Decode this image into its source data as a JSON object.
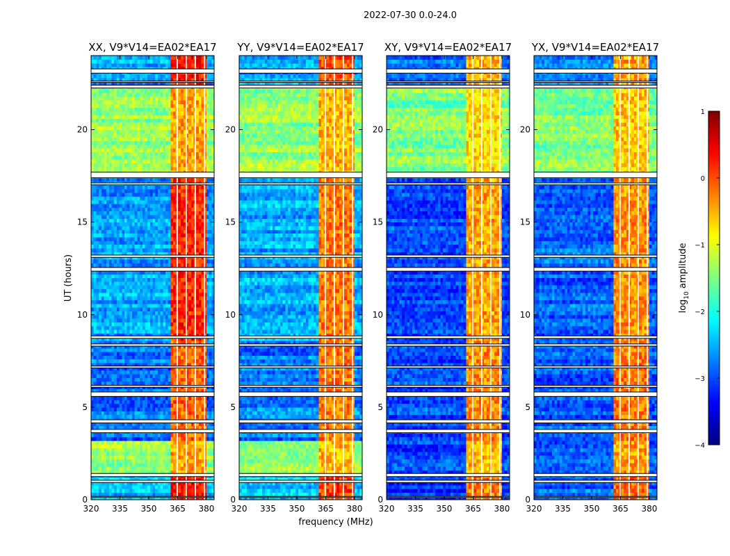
{
  "figure": {
    "suptitle": "2022-07-30 0.0-24.0",
    "xlabel": "frequency (MHz)",
    "ylabel": "UT (hours)",
    "colorbar": {
      "label_prefix": "log",
      "label_sub": "10",
      "label_suffix": " amplitude",
      "ticks": [
        1,
        0,
        -1,
        -2,
        -3,
        -4
      ],
      "tick_labels": [
        "1",
        "0",
        "−1",
        "−2",
        "−3",
        "−4"
      ],
      "colormap": "jet",
      "range": [
        -4,
        1
      ],
      "colors": [
        "#00007f",
        "#0000ff",
        "#007fff",
        "#00ffff",
        "#7fff7f",
        "#ffff00",
        "#ff7f00",
        "#ff0000",
        "#7f0000"
      ]
    }
  },
  "chart_data": [
    {
      "type": "heatmap",
      "title": "XX, V9*V14=EA02*EA17",
      "xlabel": "frequency (MHz)",
      "ylabel": "UT (hours)",
      "xlim": [
        320,
        384
      ],
      "ylim": [
        0,
        24
      ],
      "xticks": [
        320,
        335,
        350,
        365,
        380
      ],
      "xtick_labels": [
        "320",
        "335",
        "350",
        "365",
        "380"
      ],
      "yticks": [
        0,
        5,
        10,
        15,
        20
      ],
      "ytick_labels": [
        "0",
        "5",
        "10",
        "15",
        "20"
      ],
      "value": "log10 amplitude",
      "background_level_by_ut": [
        {
          "ut_range": [
            0,
            1.4
          ],
          "low_band": -2.4,
          "high_band": 0.2
        },
        {
          "ut_range": [
            1.4,
            3.2
          ],
          "low_band": -1.4,
          "high_band": -0.5
        },
        {
          "ut_range": [
            3.2,
            8.7
          ],
          "low_band": -2.8,
          "high_band": -0.2
        },
        {
          "ut_range": [
            8.7,
            17.3
          ],
          "low_band": -2.6,
          "high_band": 0.1
        },
        {
          "ut_range": [
            17.3,
            22.3
          ],
          "low_band": -1.4,
          "high_band": -0.5
        },
        {
          "ut_range": [
            22.3,
            24
          ],
          "low_band": -2.6,
          "high_band": 0.2
        }
      ]
    },
    {
      "type": "heatmap",
      "title": "YY, V9*V14=EA02*EA17",
      "xlabel": "frequency (MHz)",
      "ylabel": "UT (hours)",
      "xlim": [
        320,
        384
      ],
      "ylim": [
        0,
        24
      ],
      "xticks": [
        320,
        335,
        350,
        365,
        380
      ],
      "xtick_labels": [
        "320",
        "335",
        "350",
        "365",
        "380"
      ],
      "yticks": [
        0,
        5,
        10,
        15,
        20
      ],
      "ytick_labels": [
        "0",
        "5",
        "10",
        "15",
        "20"
      ],
      "value": "log10 amplitude",
      "background_level_by_ut": [
        {
          "ut_range": [
            0,
            1.4
          ],
          "low_band": -2.4,
          "high_band": 0.0
        },
        {
          "ut_range": [
            1.4,
            3.2
          ],
          "low_band": -1.4,
          "high_band": -0.6
        },
        {
          "ut_range": [
            3.2,
            8.7
          ],
          "low_band": -2.8,
          "high_band": -0.3
        },
        {
          "ut_range": [
            8.7,
            17.3
          ],
          "low_band": -2.5,
          "high_band": -0.3
        },
        {
          "ut_range": [
            17.3,
            22.3
          ],
          "low_band": -1.4,
          "high_band": -0.6
        },
        {
          "ut_range": [
            22.3,
            24
          ],
          "low_band": -2.6,
          "high_band": -0.1
        }
      ]
    },
    {
      "type": "heatmap",
      "title": "XY, V9*V14=EA02*EA17",
      "xlabel": "frequency (MHz)",
      "ylabel": "UT (hours)",
      "xlim": [
        320,
        384
      ],
      "ylim": [
        0,
        24
      ],
      "xticks": [
        320,
        335,
        350,
        365,
        380
      ],
      "xtick_labels": [
        "320",
        "335",
        "350",
        "365",
        "380"
      ],
      "yticks": [
        0,
        5,
        10,
        15,
        20
      ],
      "ytick_labels": [
        "0",
        "5",
        "10",
        "15",
        "20"
      ],
      "value": "log10 amplitude",
      "background_level_by_ut": [
        {
          "ut_range": [
            0,
            1.4
          ],
          "low_band": -3.2,
          "high_band": -0.3
        },
        {
          "ut_range": [
            1.4,
            3.2
          ],
          "low_band": -3.1,
          "high_band": -0.6
        },
        {
          "ut_range": [
            3.2,
            8.7
          ],
          "low_band": -3.0,
          "high_band": -0.4
        },
        {
          "ut_range": [
            8.7,
            17.3
          ],
          "low_band": -3.0,
          "high_band": -0.5
        },
        {
          "ut_range": [
            17.3,
            22.3
          ],
          "low_band": -1.5,
          "high_band": -0.8
        },
        {
          "ut_range": [
            22.3,
            24
          ],
          "low_band": -2.9,
          "high_band": -0.6
        }
      ]
    },
    {
      "type": "heatmap",
      "title": "YX, V9*V14=EA02*EA17",
      "xlabel": "frequency (MHz)",
      "ylabel": "UT (hours)",
      "xlim": [
        320,
        384
      ],
      "ylim": [
        0,
        24
      ],
      "xticks": [
        320,
        335,
        350,
        365,
        380
      ],
      "xtick_labels": [
        "320",
        "335",
        "350",
        "365",
        "380"
      ],
      "yticks": [
        0,
        5,
        10,
        15,
        20
      ],
      "ytick_labels": [
        "0",
        "5",
        "10",
        "15",
        "20"
      ],
      "value": "log10 amplitude",
      "background_level_by_ut": [
        {
          "ut_range": [
            0,
            1.4
          ],
          "low_band": -2.9,
          "high_band": -0.2
        },
        {
          "ut_range": [
            1.4,
            3.2
          ],
          "low_band": -2.9,
          "high_band": -0.5
        },
        {
          "ut_range": [
            3.2,
            8.7
          ],
          "low_band": -2.9,
          "high_band": -0.3
        },
        {
          "ut_range": [
            8.7,
            17.3
          ],
          "low_band": -2.9,
          "high_band": -0.4
        },
        {
          "ut_range": [
            17.3,
            22.3
          ],
          "low_band": -1.5,
          "high_band": -0.7
        },
        {
          "ut_range": [
            22.3,
            24
          ],
          "low_band": -2.8,
          "high_band": -0.5
        }
      ]
    }
  ],
  "flagged_ut_ranges": [
    [
      0.12,
      0.18
    ],
    [
      0.93,
      1.05
    ],
    [
      1.25,
      1.42
    ],
    [
      3.62,
      3.8
    ],
    [
      4.15,
      4.32
    ],
    [
      5.58,
      5.82
    ],
    [
      6.08,
      6.18
    ],
    [
      7.12,
      7.22
    ],
    [
      8.3,
      8.42
    ],
    [
      8.72,
      8.85
    ],
    [
      12.35,
      12.55
    ],
    [
      13.1,
      13.22
    ],
    [
      17.02,
      17.12
    ],
    [
      17.4,
      17.7
    ],
    [
      22.25,
      22.4
    ],
    [
      22.55,
      22.62
    ],
    [
      23.05,
      23.28
    ]
  ],
  "flagged_freq_columns_mhz": [
    364.8,
    369.5,
    374.2,
    379.0
  ]
}
